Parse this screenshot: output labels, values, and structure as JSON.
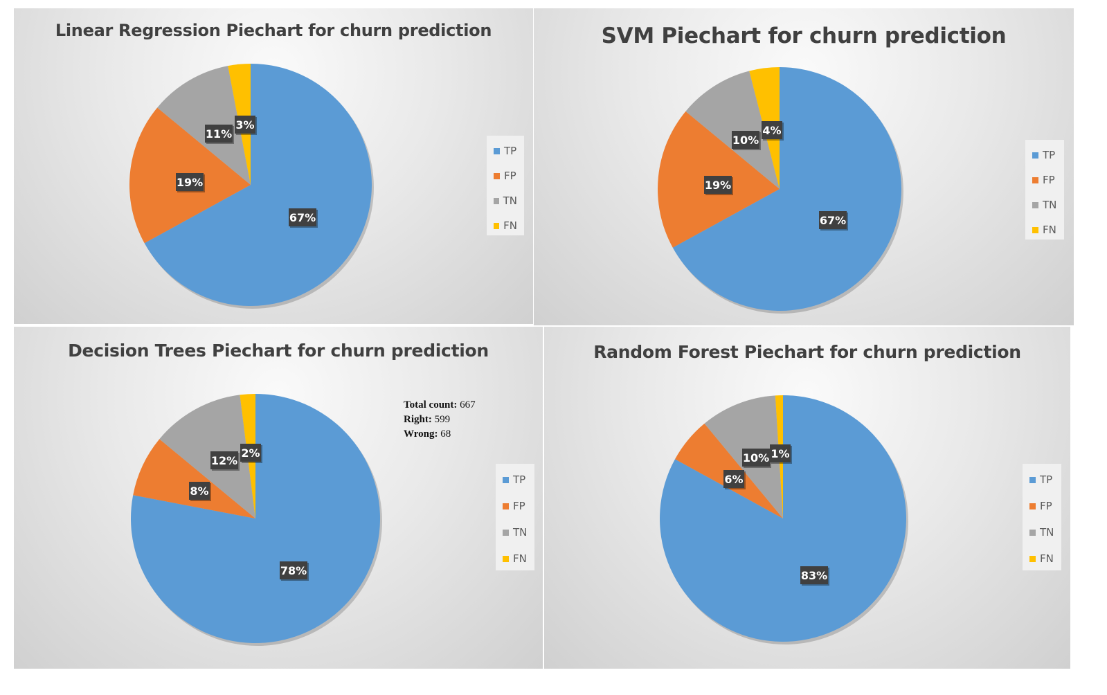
{
  "legend_labels": [
    "TP",
    "FP",
    "TN",
    "FN"
  ],
  "colors": {
    "TP": "#5b9bd5",
    "FP": "#ed7d31",
    "TN": "#a5a5a5",
    "FN": "#ffc000",
    "label_bg": "#404040"
  },
  "chart_data": [
    {
      "type": "pie",
      "title": "Linear Regression Piechart for churn prediction",
      "categories": [
        "TP",
        "FP",
        "TN",
        "FN"
      ],
      "values": [
        67,
        19,
        11,
        3
      ],
      "labels": [
        "67%",
        "19%",
        "11%",
        "3%"
      ],
      "legend": "right"
    },
    {
      "type": "pie",
      "title": "SVM Piechart for churn prediction",
      "categories": [
        "TP",
        "FP",
        "TN",
        "FN"
      ],
      "values": [
        67,
        19,
        10,
        4
      ],
      "labels": [
        "67%",
        "19%",
        "10%",
        "4%"
      ],
      "legend": "right"
    },
    {
      "type": "pie",
      "title": "Decision Trees Piechart for churn prediction",
      "categories": [
        "TP",
        "FP",
        "TN",
        "FN"
      ],
      "values": [
        78,
        8,
        12,
        2
      ],
      "labels": [
        "78%",
        "8%",
        "12%",
        "2%"
      ],
      "legend": "right"
    },
    {
      "type": "pie",
      "title": "Random Forest Piechart for churn prediction",
      "categories": [
        "TP",
        "FP",
        "TN",
        "FN"
      ],
      "values": [
        83,
        6,
        10,
        1
      ],
      "labels": [
        "83%",
        "6%",
        "10%",
        "1%"
      ],
      "legend": "right"
    }
  ],
  "annotation": {
    "total_label": "Total count:",
    "total_value": "667",
    "right_label": "Right:",
    "right_value": "599",
    "wrong_label": "Wrong:",
    "wrong_value": "68"
  }
}
